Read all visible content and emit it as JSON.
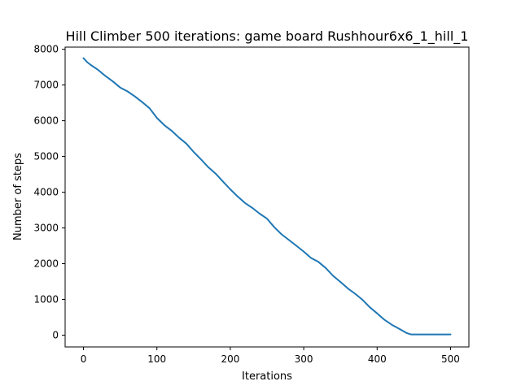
{
  "chart_data": {
    "type": "line",
    "title": "Hill Climber 500 iterations: game board Rushhour6x6_1_hill_1",
    "xlabel": "Iterations",
    "ylabel": "Number of steps",
    "xlim": [
      -25,
      525
    ],
    "ylim": [
      -330,
      8060
    ],
    "xticks": [
      0,
      100,
      200,
      300,
      400,
      500
    ],
    "yticks": [
      0,
      1000,
      2000,
      3000,
      4000,
      5000,
      6000,
      7000,
      8000
    ],
    "grid": false,
    "series": [
      {
        "color": "#1f77b4",
        "x": [
          0,
          5,
          10,
          20,
          30,
          40,
          50,
          60,
          70,
          80,
          90,
          100,
          110,
          120,
          130,
          140,
          150,
          160,
          170,
          180,
          190,
          200,
          210,
          220,
          230,
          240,
          250,
          260,
          270,
          280,
          290,
          300,
          310,
          320,
          330,
          340,
          350,
          360,
          370,
          380,
          390,
          400,
          410,
          420,
          430,
          440,
          446,
          450,
          460,
          470,
          480,
          490,
          500
        ],
        "y": [
          7750,
          7640,
          7560,
          7420,
          7250,
          7100,
          6930,
          6820,
          6680,
          6520,
          6350,
          6080,
          5880,
          5720,
          5530,
          5360,
          5130,
          4920,
          4700,
          4520,
          4300,
          4080,
          3880,
          3700,
          3560,
          3400,
          3260,
          3020,
          2820,
          2660,
          2500,
          2340,
          2160,
          2050,
          1880,
          1660,
          1490,
          1310,
          1160,
          990,
          780,
          610,
          430,
          290,
          180,
          60,
          20,
          20,
          20,
          20,
          20,
          20,
          20
        ]
      }
    ]
  }
}
